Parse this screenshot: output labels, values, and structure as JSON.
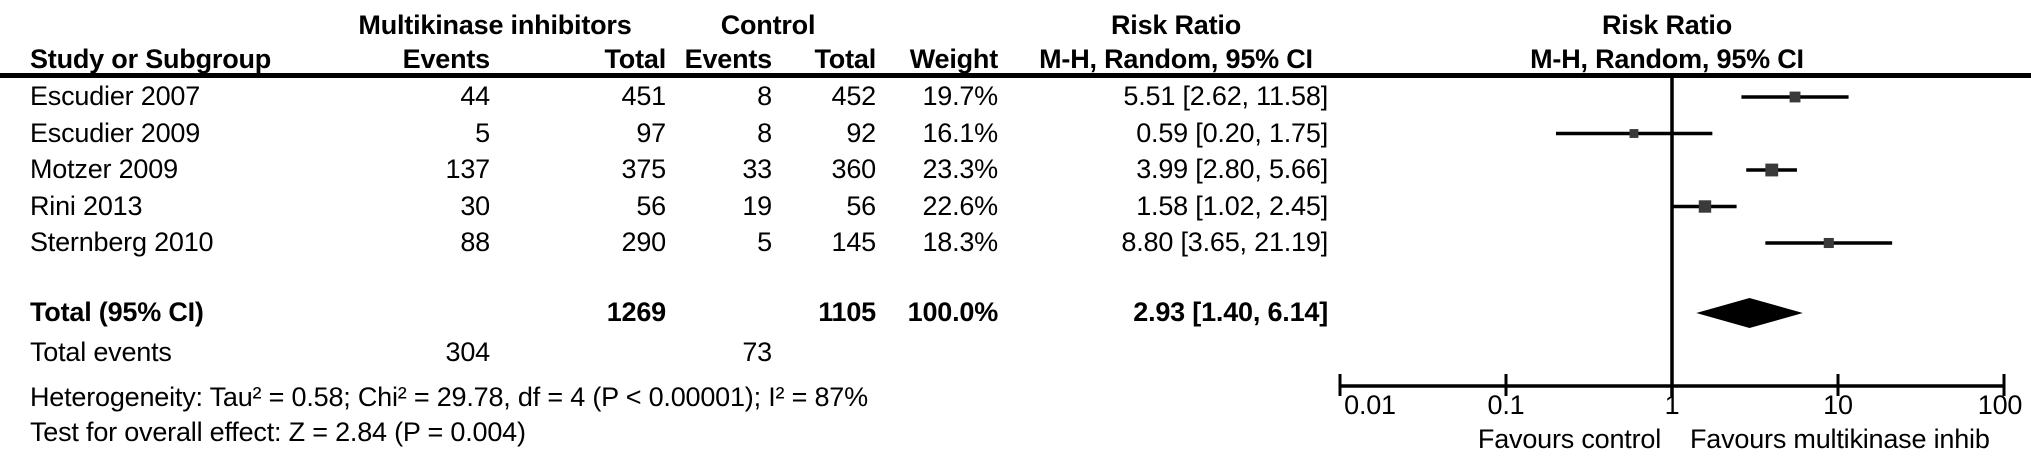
{
  "header": {
    "group_experimental": "Multikinase inhibitors",
    "group_control": "Control",
    "col_study": "Study or Subgroup",
    "col_events": "Events",
    "col_total": "Total",
    "col_weight": "Weight",
    "risk_ratio_title": "Risk Ratio",
    "risk_ratio_sub": "M-H, Random, 95% CI"
  },
  "chart_data": {
    "type": "forest",
    "effect_measure": "Risk Ratio",
    "method": "M-H, Random, 95% CI",
    "x_scale": "log10",
    "x_range": [
      0.01,
      100
    ],
    "x_ticks": [
      0.01,
      0.1,
      1,
      10,
      100
    ],
    "x_tick_labels": [
      "0.01",
      "0.1",
      "1",
      "10",
      "100"
    ],
    "null_line_value": 1,
    "favours_left": "Favours control",
    "favours_right": "Favours multikinase inhib",
    "studies": [
      {
        "name": "Escudier 2007",
        "events_exp": "44",
        "total_exp": "451",
        "events_ctrl": "8",
        "total_ctrl": "452",
        "weight": "19.7%",
        "weight_pct": 19.7,
        "rr": 5.51,
        "ci_low": 2.62,
        "ci_high": 11.58,
        "ci_label": "5.51 [2.62, 11.58]"
      },
      {
        "name": "Escudier 2009",
        "events_exp": "5",
        "total_exp": "97",
        "events_ctrl": "8",
        "total_ctrl": "92",
        "weight": "16.1%",
        "weight_pct": 16.1,
        "rr": 0.59,
        "ci_low": 0.2,
        "ci_high": 1.75,
        "ci_label": "0.59 [0.20, 1.75]"
      },
      {
        "name": "Motzer 2009",
        "events_exp": "137",
        "total_exp": "375",
        "events_ctrl": "33",
        "total_ctrl": "360",
        "weight": "23.3%",
        "weight_pct": 23.3,
        "rr": 3.99,
        "ci_low": 2.8,
        "ci_high": 5.66,
        "ci_label": "3.99 [2.80, 5.66]"
      },
      {
        "name": "Rini 2013",
        "events_exp": "30",
        "total_exp": "56",
        "events_ctrl": "19",
        "total_ctrl": "56",
        "weight": "22.6%",
        "weight_pct": 22.6,
        "rr": 1.58,
        "ci_low": 1.02,
        "ci_high": 2.45,
        "ci_label": "1.58 [1.02, 2.45]"
      },
      {
        "name": "Sternberg 2010",
        "events_exp": "88",
        "total_exp": "290",
        "events_ctrl": "5",
        "total_ctrl": "145",
        "weight": "18.3%",
        "weight_pct": 18.3,
        "rr": 8.8,
        "ci_low": 3.65,
        "ci_high": 21.19,
        "ci_label": "8.80 [3.65, 21.19]"
      }
    ],
    "total": {
      "label": "Total (95% CI)",
      "total_exp": "1269",
      "total_ctrl": "1105",
      "weight": "100.0%",
      "rr": 2.93,
      "ci_low": 1.4,
      "ci_high": 6.14,
      "ci_label": "2.93 [1.40, 6.14]"
    },
    "total_events": {
      "label": "Total events",
      "events_exp": "304",
      "events_ctrl": "73"
    },
    "heterogeneity": "Heterogeneity: Tau² = 0.58; Chi² = 29.78, df = 4 (P < 0.00001); I² = 87%",
    "overall_effect": "Test for overall effect: Z = 2.84 (P = 0.004)"
  },
  "colors": {
    "text": "#000000",
    "lines": "#000000",
    "marker": "#3a3a3a",
    "diamond": "#000000",
    "background": "#ffffff"
  }
}
